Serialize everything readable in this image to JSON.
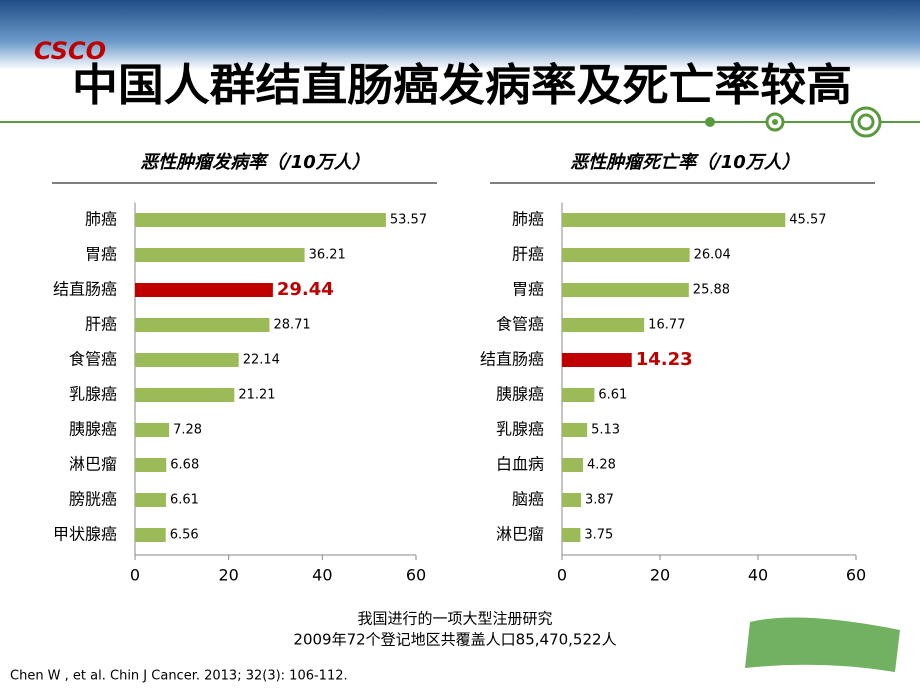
{
  "logo": "CSCO",
  "title": "中国人群结直肠癌发病率及死亡率较高",
  "chart_data": [
    {
      "type": "bar",
      "orientation": "horizontal",
      "title": "恶性肿瘤发病率（/10万人）",
      "categories": [
        "肺癌",
        "胃癌",
        "结直肠癌",
        "肝癌",
        "食管癌",
        "乳腺癌",
        "胰腺癌",
        "淋巴瘤",
        "膀胱癌",
        "甲状腺癌"
      ],
      "values": [
        53.57,
        36.21,
        29.44,
        28.71,
        22.14,
        21.21,
        7.28,
        6.68,
        6.61,
        6.56
      ],
      "color": "#9bbb59",
      "colors": [
        "#9bbb59",
        "#9bbb59",
        "#c00000",
        "#9bbb59",
        "#9bbb59",
        "#9bbb59",
        "#9bbb59",
        "#9bbb59",
        "#9bbb59",
        "#9bbb59"
      ],
      "xlim": [
        0,
        60
      ],
      "xticks": [
        0,
        20,
        40,
        60
      ],
      "grid": false
    },
    {
      "type": "bar",
      "orientation": "horizontal",
      "title": "恶性肿瘤死亡率（/10万人）",
      "categories": [
        "肺癌",
        "肝癌",
        "胃癌",
        "食管癌",
        "结直肠癌",
        "胰腺癌",
        "乳腺癌",
        "白血病",
        "脑癌",
        "淋巴瘤"
      ],
      "values": [
        45.57,
        26.04,
        25.88,
        16.77,
        14.23,
        6.61,
        5.13,
        4.28,
        3.87,
        3.75
      ],
      "color": "#9bbb59",
      "colors": [
        "#9bbb59",
        "#9bbb59",
        "#9bbb59",
        "#9bbb59",
        "#c00000",
        "#9bbb59",
        "#9bbb59",
        "#9bbb59",
        "#9bbb59",
        "#9bbb59"
      ],
      "xlim": [
        0,
        60
      ],
      "xticks": [
        0,
        20,
        40,
        60
      ],
      "grid": false
    }
  ],
  "notes": [
    "我国进行的一项大型注册研究",
    "2009年72个登记地区共覆盖人口85,470,522人"
  ],
  "citation": "Chen W , et al. Chin J Cancer. 2013; 32(3): 106-112."
}
